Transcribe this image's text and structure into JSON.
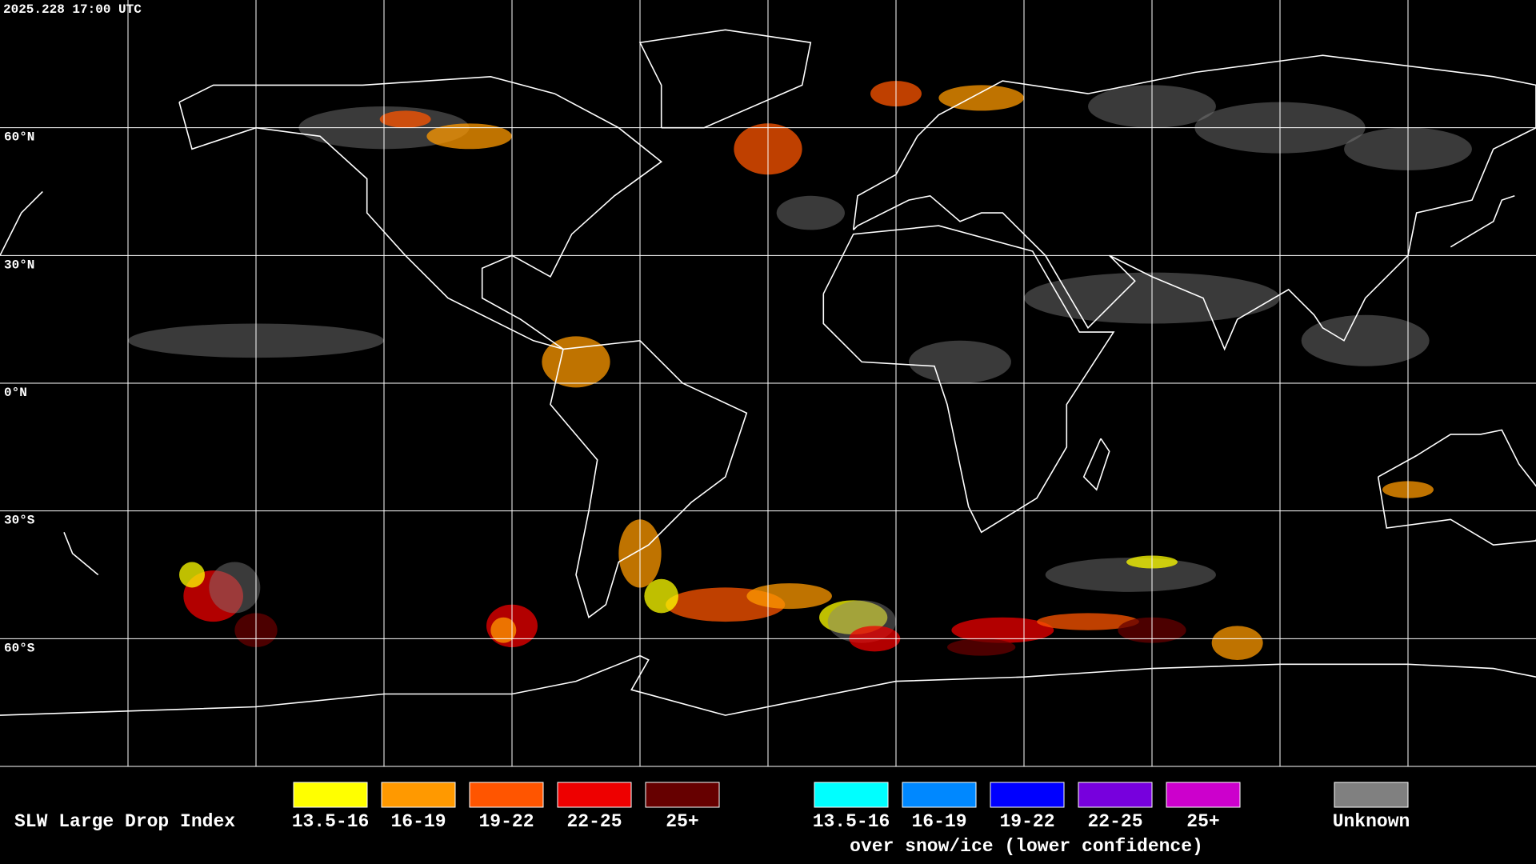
{
  "timestamp": "2025.228 17:00 UTC",
  "latitude_labels": [
    "60°N",
    "30°N",
    "0°N",
    "30°S",
    "60°S"
  ],
  "legend": {
    "title": "SLW Large Drop Index",
    "items": [
      {
        "label": "13.5-16",
        "color": "#ffff00"
      },
      {
        "label": "16-19",
        "color": "#ff9900"
      },
      {
        "label": "19-22",
        "color": "#ff5500"
      },
      {
        "label": "22-25",
        "color": "#ee0000"
      },
      {
        "label": "25+",
        "color": "#660000"
      }
    ],
    "snow_items": [
      {
        "label": "13.5-16",
        "color": "#00ffff"
      },
      {
        "label": "16-19",
        "color": "#0088ff"
      },
      {
        "label": "19-22",
        "color": "#0000ff"
      },
      {
        "label": "22-25",
        "color": "#7700dd"
      },
      {
        "label": "25+",
        "color": "#cc00cc"
      }
    ],
    "snow_caption": "over snow/ice (lower confidence)",
    "unknown": {
      "label": "Unknown",
      "color": "#808080"
    }
  }
}
